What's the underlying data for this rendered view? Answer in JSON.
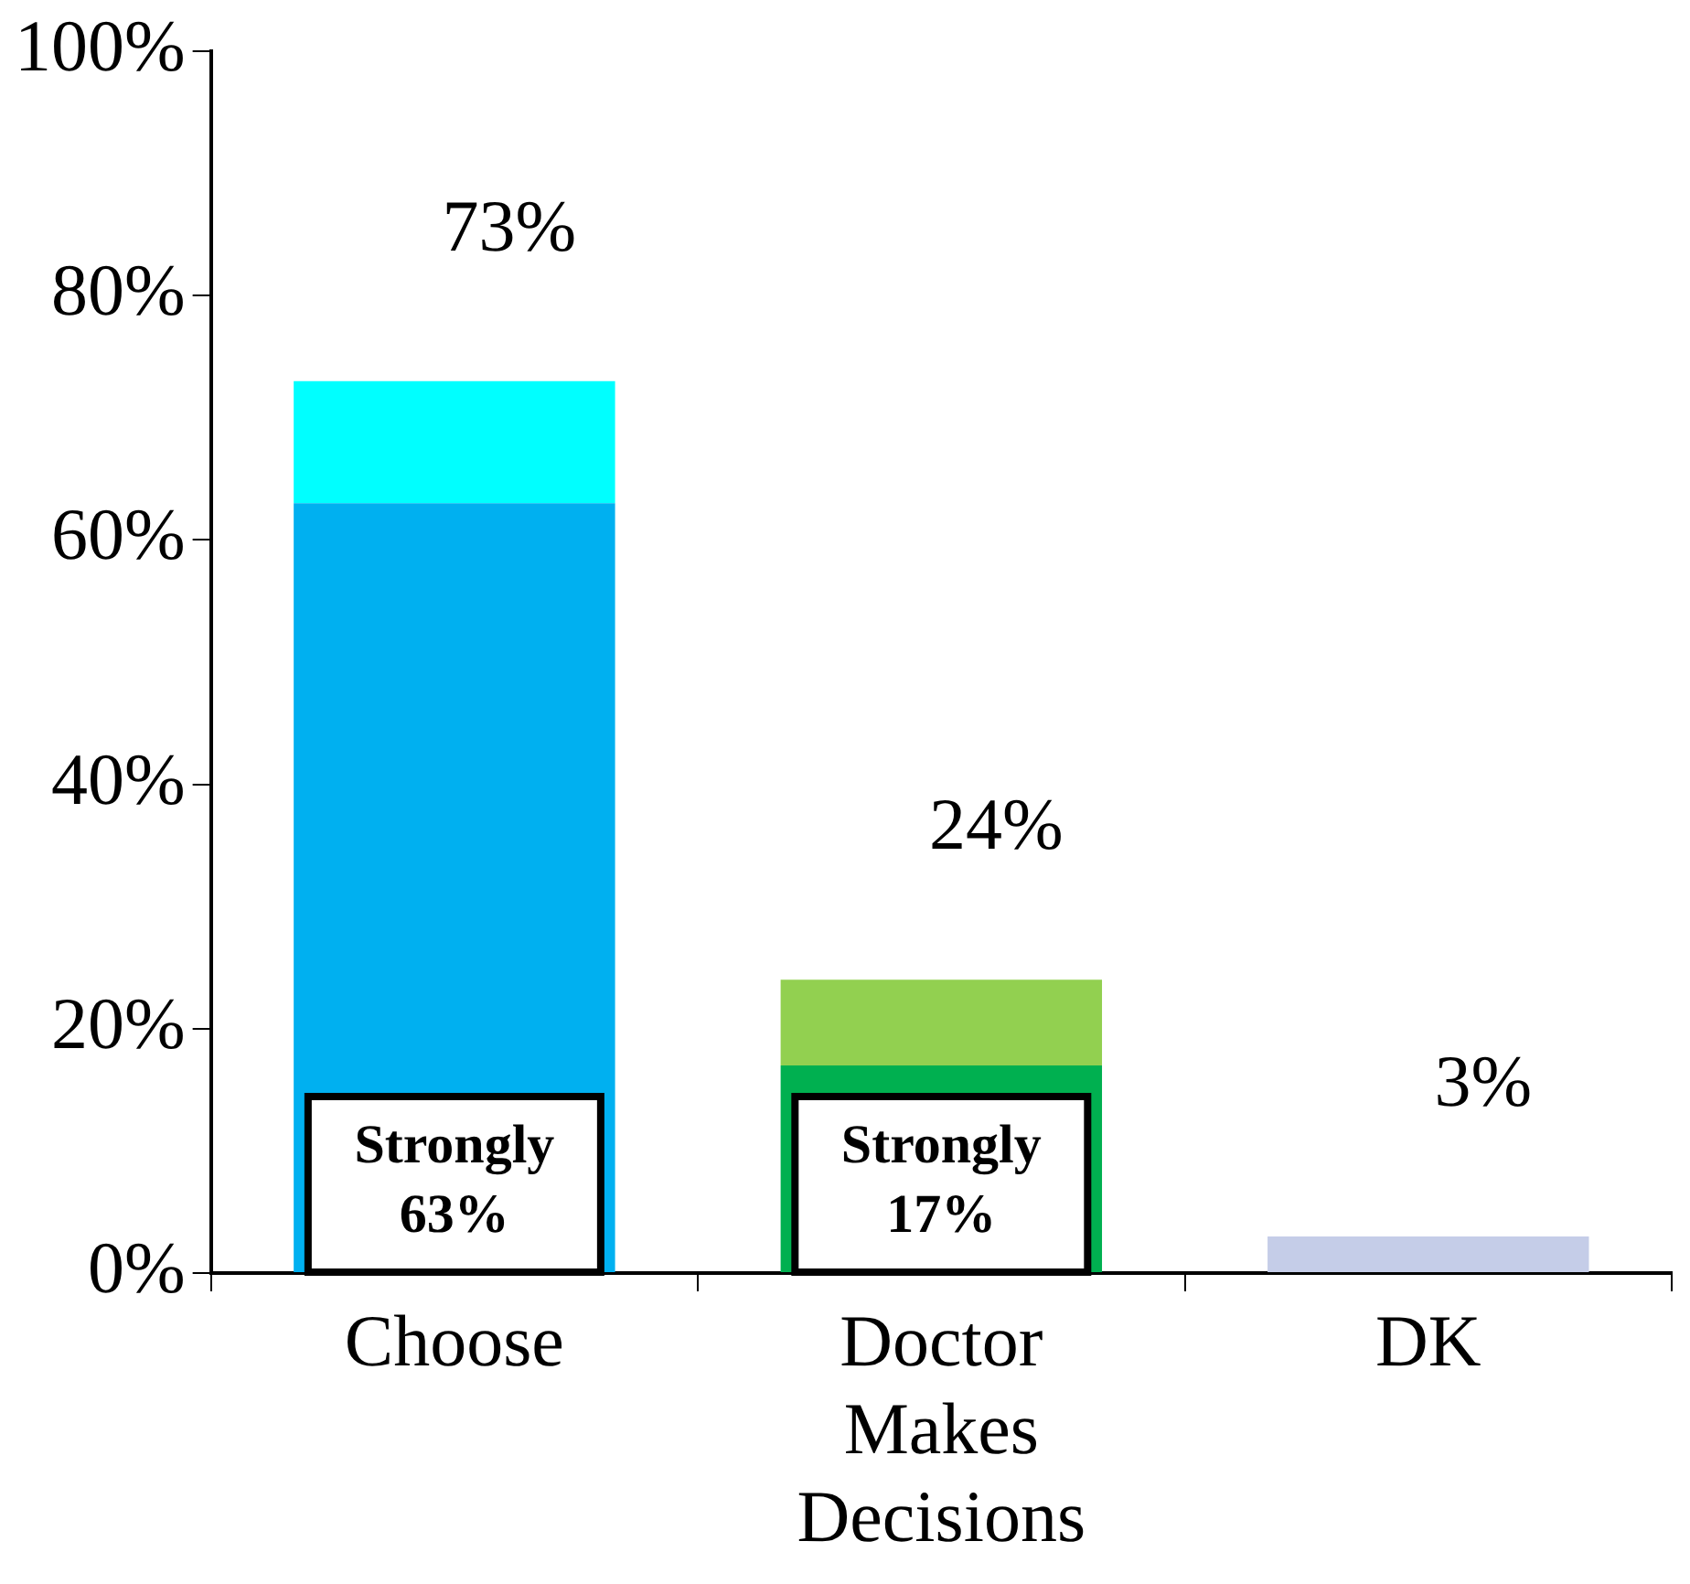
{
  "chart_data": {
    "type": "bar",
    "stacked": true,
    "categories": [
      "Choose",
      "Doctor Makes Decisions",
      "DK"
    ],
    "series": [
      {
        "colors": [
          "#00b0f0",
          "#00b050",
          "#c5cde8"
        ],
        "values": [
          63,
          17,
          3
        ],
        "value_labels": [
          "Strongly 63%",
          "Strongly 17%",
          null
        ]
      },
      {
        "colors": [
          "#00ffff",
          "#92d050",
          "#c5cde8"
        ],
        "values": [
          10,
          7,
          null
        ]
      }
    ],
    "totals": [
      "73%",
      "24%",
      "3%"
    ],
    "ylim": [
      0,
      100
    ],
    "yticks": [
      {
        "value": 0,
        "label": "0%"
      },
      {
        "value": 20,
        "label": "20%"
      },
      {
        "value": 40,
        "label": "40%"
      },
      {
        "value": 60,
        "label": "60%"
      },
      {
        "value": 80,
        "label": "80%"
      },
      {
        "value": 100,
        "label": "100%"
      }
    ],
    "grid": false,
    "legend": false
  }
}
